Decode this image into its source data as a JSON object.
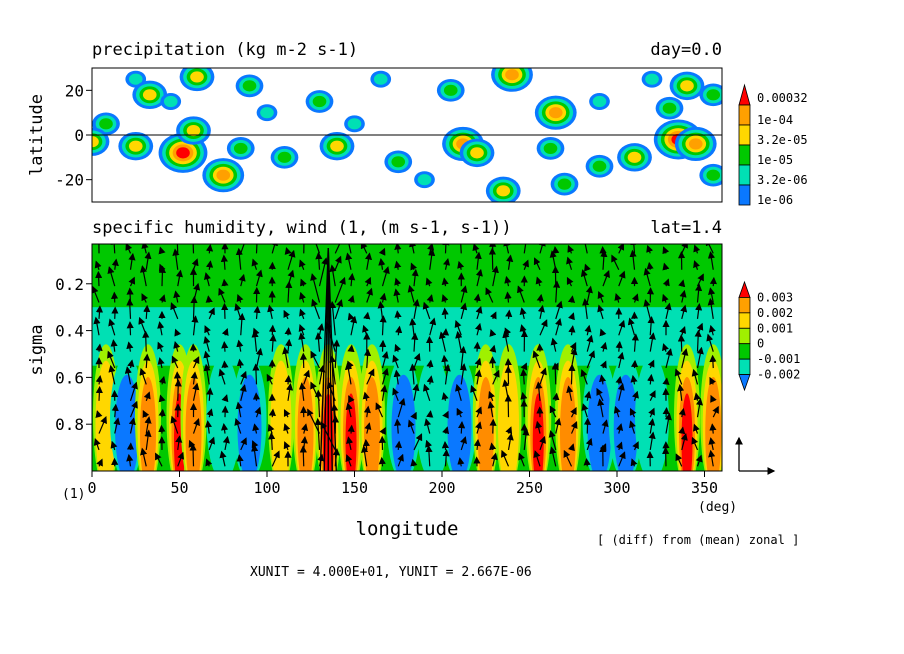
{
  "colors": {
    "blue": "#0a78ff",
    "cyan": "#00e0b4",
    "green": "#00c800",
    "light_green": "#a0f000",
    "yellow": "#ffd700",
    "orange": "#ff8c00",
    "red": "#ff0000",
    "dark_red": "#c00000"
  },
  "chart_data": [
    {
      "type": "heatmap",
      "title": "precipitation (kg m-2 s-1)",
      "title_right": "day=0.0",
      "ylabel": "latitude",
      "xlim": [
        0,
        360
      ],
      "ylim": [
        -30,
        30
      ],
      "yticks": [
        "20",
        "0",
        "-20"
      ],
      "ytick_values": [
        20,
        0,
        -20
      ],
      "zero_line": true,
      "legend": {
        "labels": [
          "0.00032",
          "1e-04",
          "3.2e-05",
          "1e-05",
          "3.2e-06",
          "1e-06"
        ],
        "colors": [
          "#ff0000",
          "#ffa000",
          "#ffd700",
          "#00c800",
          "#00e0b4",
          "#0a78ff"
        ]
      },
      "cells": [
        {
          "x": 8,
          "y": 5,
          "v": 3
        },
        {
          "x": 25,
          "y": 25,
          "v": 2
        },
        {
          "x": 33,
          "y": 18,
          "v": 4
        },
        {
          "x": 60,
          "y": 26,
          "v": 4
        },
        {
          "x": 90,
          "y": 22,
          "v": 3
        },
        {
          "x": 130,
          "y": 15,
          "v": 3
        },
        {
          "x": 165,
          "y": 25,
          "v": 2
        },
        {
          "x": 205,
          "y": 20,
          "v": 3
        },
        {
          "x": 240,
          "y": 27,
          "v": 5
        },
        {
          "x": 265,
          "y": 10,
          "v": 5
        },
        {
          "x": 290,
          "y": 15,
          "v": 2
        },
        {
          "x": 330,
          "y": 12,
          "v": 3
        },
        {
          "x": 340,
          "y": 22,
          "v": 4
        },
        {
          "x": 355,
          "y": 18,
          "v": 3
        },
        {
          "x": 0,
          "y": -3,
          "v": 4
        },
        {
          "x": 25,
          "y": -5,
          "v": 4
        },
        {
          "x": 52,
          "y": -8,
          "v": 6
        },
        {
          "x": 58,
          "y": 2,
          "v": 4
        },
        {
          "x": 75,
          "y": -18,
          "v": 5
        },
        {
          "x": 85,
          "y": -6,
          "v": 3
        },
        {
          "x": 110,
          "y": -10,
          "v": 3
        },
        {
          "x": 140,
          "y": -5,
          "v": 4
        },
        {
          "x": 175,
          "y": -12,
          "v": 3
        },
        {
          "x": 212,
          "y": -4,
          "v": 5
        },
        {
          "x": 220,
          "y": -8,
          "v": 4
        },
        {
          "x": 235,
          "y": -25,
          "v": 4
        },
        {
          "x": 262,
          "y": -6,
          "v": 3
        },
        {
          "x": 290,
          "y": -14,
          "v": 3
        },
        {
          "x": 310,
          "y": -10,
          "v": 4
        },
        {
          "x": 335,
          "y": -2,
          "v": 6
        },
        {
          "x": 345,
          "y": -4,
          "v": 5
        },
        {
          "x": 355,
          "y": -18,
          "v": 3
        },
        {
          "x": 150,
          "y": 5,
          "v": 2
        },
        {
          "x": 190,
          "y": -20,
          "v": 2
        },
        {
          "x": 100,
          "y": 10,
          "v": 2
        },
        {
          "x": 45,
          "y": 15,
          "v": 2
        },
        {
          "x": 270,
          "y": -22,
          "v": 3
        },
        {
          "x": 320,
          "y": 25,
          "v": 2
        }
      ]
    },
    {
      "type": "heatmap",
      "title": "specific humidity, wind (1, (m s-1, s-1))",
      "title_right": "lat=1.4",
      "xlabel": "longitude",
      "ylabel": "sigma",
      "xlim": [
        0,
        360
      ],
      "ylim": [
        1.0,
        0.03
      ],
      "xticks": [
        "0",
        "50",
        "100",
        "150",
        "200",
        "250",
        "300",
        "350"
      ],
      "xtick_values": [
        0,
        50,
        100,
        150,
        200,
        250,
        300,
        350
      ],
      "xunit_label": "(deg)",
      "yticks": [
        "0.2",
        "0.4",
        "0.6",
        "0.8"
      ],
      "ytick_values": [
        0.2,
        0.4,
        0.6,
        0.8
      ],
      "legend": {
        "labels": [
          "0.003",
          "0.002",
          "0.001",
          "0",
          "-0.001",
          "-0.002"
        ],
        "colors": [
          "#ff0000",
          "#ffa000",
          "#ffd700",
          "#a0f000",
          "#00c800",
          "#00e0b4",
          "#0a78ff"
        ]
      },
      "anomaly_columns": [
        {
          "x": 8,
          "v": 1
        },
        {
          "x": 20,
          "v": -2
        },
        {
          "x": 32,
          "v": 2
        },
        {
          "x": 50,
          "v": 3
        },
        {
          "x": 58,
          "v": 2
        },
        {
          "x": 75,
          "v": -1
        },
        {
          "x": 90,
          "v": -2
        },
        {
          "x": 108,
          "v": 1
        },
        {
          "x": 122,
          "v": 2
        },
        {
          "x": 135,
          "v": 3
        },
        {
          "x": 148,
          "v": 3
        },
        {
          "x": 160,
          "v": 2
        },
        {
          "x": 178,
          "v": -2
        },
        {
          "x": 195,
          "v": -1
        },
        {
          "x": 210,
          "v": -2
        },
        {
          "x": 225,
          "v": 2
        },
        {
          "x": 238,
          "v": 1
        },
        {
          "x": 255,
          "v": 3
        },
        {
          "x": 272,
          "v": 2
        },
        {
          "x": 290,
          "v": -2
        },
        {
          "x": 305,
          "v": -2
        },
        {
          "x": 320,
          "v": -1
        },
        {
          "x": 340,
          "v": 3
        },
        {
          "x": 355,
          "v": 2
        }
      ],
      "max_arrow_x": 135
    }
  ],
  "footer": {
    "panel_number": "(1)",
    "diff_note": "[ (diff) from (mean) zonal ]",
    "units": "XUNIT = 4.000E+01, YUNIT = 2.667E-06"
  }
}
